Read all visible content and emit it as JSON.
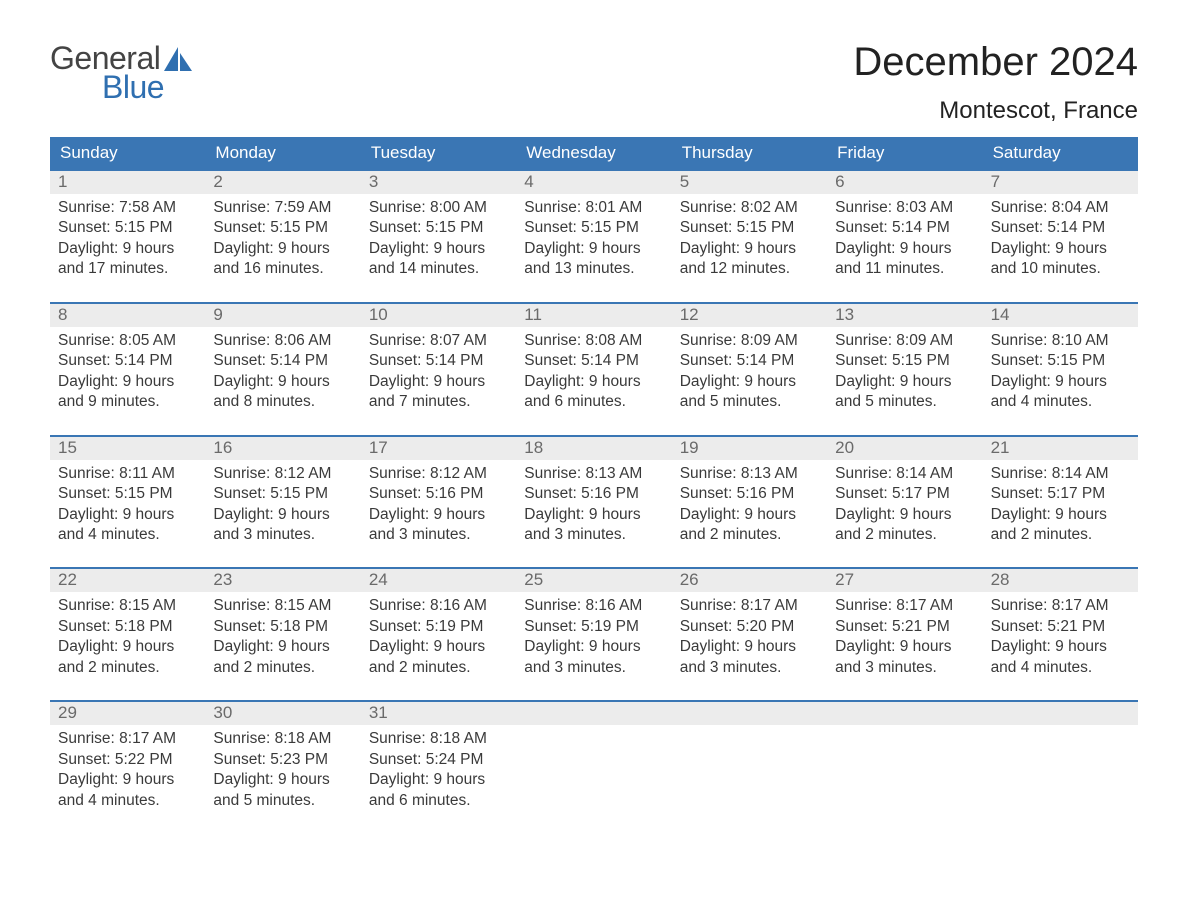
{
  "brand": {
    "word1": "General",
    "word2": "Blue",
    "sail_color": "#2f6fb0",
    "word1_color": "#444444",
    "word2_color": "#2f6fb0"
  },
  "header": {
    "title": "December 2024",
    "location": "Montescot, France"
  },
  "colors": {
    "header_bg": "#3a76b4",
    "header_text": "#ffffff",
    "daynum_bg": "#ececec",
    "daynum_text": "#6a6a6a",
    "body_text": "#3a3a3a",
    "row_border": "#3a76b4"
  },
  "weekdays": [
    "Sunday",
    "Monday",
    "Tuesday",
    "Wednesday",
    "Thursday",
    "Friday",
    "Saturday"
  ],
  "weeks": [
    [
      {
        "n": "1",
        "sunrise": "7:58 AM",
        "sunset": "5:15 PM",
        "daylight": "9 hours and 17 minutes."
      },
      {
        "n": "2",
        "sunrise": "7:59 AM",
        "sunset": "5:15 PM",
        "daylight": "9 hours and 16 minutes."
      },
      {
        "n": "3",
        "sunrise": "8:00 AM",
        "sunset": "5:15 PM",
        "daylight": "9 hours and 14 minutes."
      },
      {
        "n": "4",
        "sunrise": "8:01 AM",
        "sunset": "5:15 PM",
        "daylight": "9 hours and 13 minutes."
      },
      {
        "n": "5",
        "sunrise": "8:02 AM",
        "sunset": "5:15 PM",
        "daylight": "9 hours and 12 minutes."
      },
      {
        "n": "6",
        "sunrise": "8:03 AM",
        "sunset": "5:14 PM",
        "daylight": "9 hours and 11 minutes."
      },
      {
        "n": "7",
        "sunrise": "8:04 AM",
        "sunset": "5:14 PM",
        "daylight": "9 hours and 10 minutes."
      }
    ],
    [
      {
        "n": "8",
        "sunrise": "8:05 AM",
        "sunset": "5:14 PM",
        "daylight": "9 hours and 9 minutes."
      },
      {
        "n": "9",
        "sunrise": "8:06 AM",
        "sunset": "5:14 PM",
        "daylight": "9 hours and 8 minutes."
      },
      {
        "n": "10",
        "sunrise": "8:07 AM",
        "sunset": "5:14 PM",
        "daylight": "9 hours and 7 minutes."
      },
      {
        "n": "11",
        "sunrise": "8:08 AM",
        "sunset": "5:14 PM",
        "daylight": "9 hours and 6 minutes."
      },
      {
        "n": "12",
        "sunrise": "8:09 AM",
        "sunset": "5:14 PM",
        "daylight": "9 hours and 5 minutes."
      },
      {
        "n": "13",
        "sunrise": "8:09 AM",
        "sunset": "5:15 PM",
        "daylight": "9 hours and 5 minutes."
      },
      {
        "n": "14",
        "sunrise": "8:10 AM",
        "sunset": "5:15 PM",
        "daylight": "9 hours and 4 minutes."
      }
    ],
    [
      {
        "n": "15",
        "sunrise": "8:11 AM",
        "sunset": "5:15 PM",
        "daylight": "9 hours and 4 minutes."
      },
      {
        "n": "16",
        "sunrise": "8:12 AM",
        "sunset": "5:15 PM",
        "daylight": "9 hours and 3 minutes."
      },
      {
        "n": "17",
        "sunrise": "8:12 AM",
        "sunset": "5:16 PM",
        "daylight": "9 hours and 3 minutes."
      },
      {
        "n": "18",
        "sunrise": "8:13 AM",
        "sunset": "5:16 PM",
        "daylight": "9 hours and 3 minutes."
      },
      {
        "n": "19",
        "sunrise": "8:13 AM",
        "sunset": "5:16 PM",
        "daylight": "9 hours and 2 minutes."
      },
      {
        "n": "20",
        "sunrise": "8:14 AM",
        "sunset": "5:17 PM",
        "daylight": "9 hours and 2 minutes."
      },
      {
        "n": "21",
        "sunrise": "8:14 AM",
        "sunset": "5:17 PM",
        "daylight": "9 hours and 2 minutes."
      }
    ],
    [
      {
        "n": "22",
        "sunrise": "8:15 AM",
        "sunset": "5:18 PM",
        "daylight": "9 hours and 2 minutes."
      },
      {
        "n": "23",
        "sunrise": "8:15 AM",
        "sunset": "5:18 PM",
        "daylight": "9 hours and 2 minutes."
      },
      {
        "n": "24",
        "sunrise": "8:16 AM",
        "sunset": "5:19 PM",
        "daylight": "9 hours and 2 minutes."
      },
      {
        "n": "25",
        "sunrise": "8:16 AM",
        "sunset": "5:19 PM",
        "daylight": "9 hours and 3 minutes."
      },
      {
        "n": "26",
        "sunrise": "8:17 AM",
        "sunset": "5:20 PM",
        "daylight": "9 hours and 3 minutes."
      },
      {
        "n": "27",
        "sunrise": "8:17 AM",
        "sunset": "5:21 PM",
        "daylight": "9 hours and 3 minutes."
      },
      {
        "n": "28",
        "sunrise": "8:17 AM",
        "sunset": "5:21 PM",
        "daylight": "9 hours and 4 minutes."
      }
    ],
    [
      {
        "n": "29",
        "sunrise": "8:17 AM",
        "sunset": "5:22 PM",
        "daylight": "9 hours and 4 minutes."
      },
      {
        "n": "30",
        "sunrise": "8:18 AM",
        "sunset": "5:23 PM",
        "daylight": "9 hours and 5 minutes."
      },
      {
        "n": "31",
        "sunrise": "8:18 AM",
        "sunset": "5:24 PM",
        "daylight": "9 hours and 6 minutes."
      },
      null,
      null,
      null,
      null
    ]
  ],
  "labels": {
    "sunrise": "Sunrise:",
    "sunset": "Sunset:",
    "daylight": "Daylight:"
  }
}
